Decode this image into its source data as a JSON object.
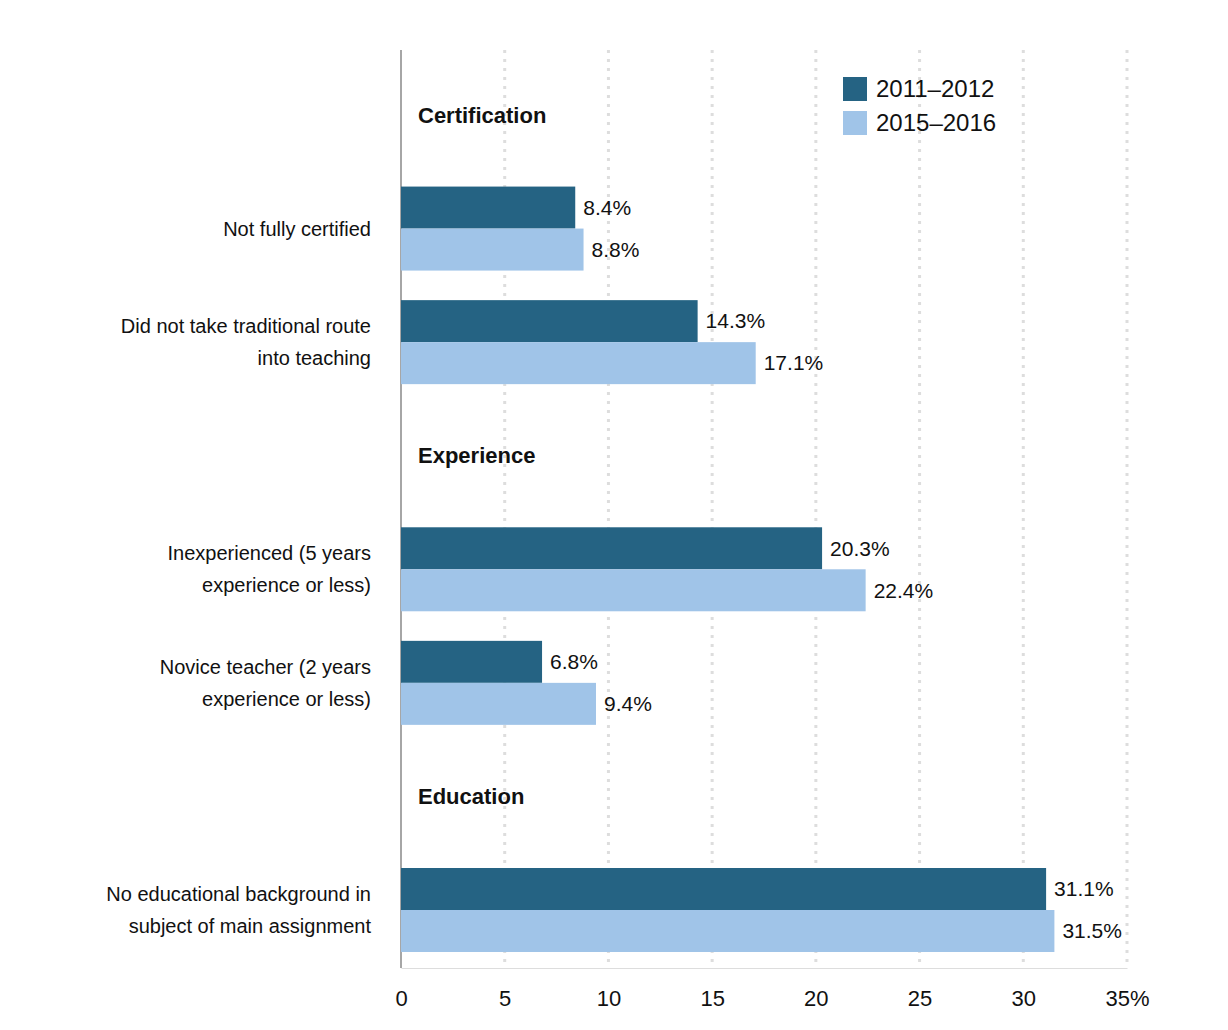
{
  "chart_data": {
    "type": "bar",
    "orientation": "horizontal",
    "categories": [
      "Not fully certified",
      "Did not take traditional route\ninto teaching",
      "Inexperienced (5 years\nexperience or less)",
      "Novice teacher (2 years\nexperience or less)",
      "No educational background in\nsubject of main assignment"
    ],
    "groups": [
      {
        "label": "Certification",
        "categories": [
          "Not fully certified",
          "Did not take traditional route\ninto teaching"
        ]
      },
      {
        "label": "Experience",
        "categories": [
          "Inexperienced (5 years\nexperience or less)",
          "Novice teacher (2 years\nexperience or less)"
        ]
      },
      {
        "label": "Education",
        "categories": [
          "No educational background in\nsubject of main assignment"
        ]
      }
    ],
    "series": [
      {
        "name": "2011–2012",
        "color": "#256383",
        "values": [
          8.4,
          14.3,
          20.3,
          6.8,
          31.1
        ],
        "value_labels": [
          "8.4%",
          "14.3%",
          "20.3%",
          "6.8%",
          "31.1%"
        ]
      },
      {
        "name": "2015–2016",
        "color": "#a0c4e8",
        "values": [
          8.8,
          17.1,
          22.4,
          9.4,
          31.5
        ],
        "value_labels": [
          "8.8%",
          "17.1%",
          "22.4%",
          "9.4%",
          "31.5%"
        ]
      }
    ],
    "xlim": [
      0,
      35
    ],
    "xticks": [
      0,
      5,
      10,
      15,
      20,
      25,
      30,
      {
        "value": 35,
        "label": "35%"
      }
    ],
    "grid": true,
    "legend": "top-right",
    "data_labels": true
  }
}
